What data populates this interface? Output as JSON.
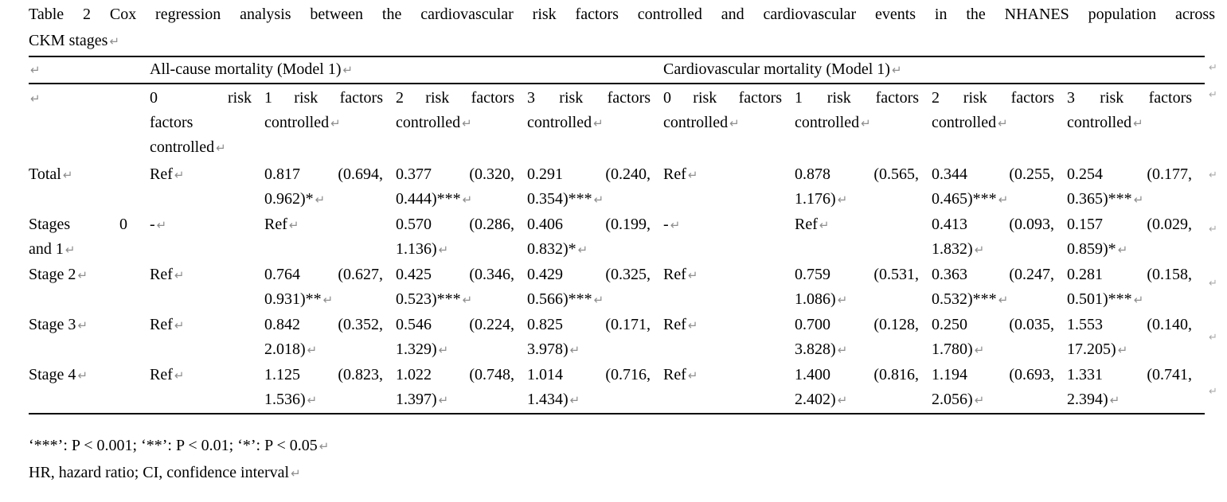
{
  "document": {
    "title_lines": [
      "Table 2 Cox regression analysis between the cardiovascular risk factors controlled and cardiovascular events in the NHANES population across",
      "CKM stages"
    ],
    "footnotes": [
      "‘***’: P < 0.001; ‘**’: P < 0.01; ‘*’: P < 0.05",
      "HR, hazard ratio; CI, confidence interval"
    ]
  },
  "marks": {
    "paragraph": "↵",
    "row_end": "↵"
  },
  "colors": {
    "text": "#000000",
    "background": "#ffffff",
    "border": "#000000",
    "mark": "#8e8e8e"
  },
  "table": {
    "group_headers": [
      {
        "label": "All-cause mortality (Model 1)",
        "span": 4
      },
      {
        "label": "Cardiovascular mortality (Model 1)",
        "span": 4
      }
    ],
    "column_headers": [
      {
        "lines": [
          "0 risk",
          "factors",
          "controlled"
        ]
      },
      {
        "lines": [
          "1 risk factors",
          "controlled"
        ]
      },
      {
        "lines": [
          "2 risk factors",
          "controlled"
        ]
      },
      {
        "lines": [
          "3 risk factors",
          "controlled"
        ]
      },
      {
        "lines": [
          "0 risk factors",
          "controlled"
        ]
      },
      {
        "lines": [
          "1 risk factors",
          "controlled"
        ]
      },
      {
        "lines": [
          "2 risk factors",
          "controlled"
        ]
      },
      {
        "lines": [
          "3 risk factors",
          "controlled"
        ]
      }
    ],
    "rows": [
      {
        "label": {
          "lines": [
            "Total"
          ]
        },
        "cells": [
          {
            "lines": [
              "Ref"
            ]
          },
          {
            "lines": [
              "0.817 (0.694,",
              "0.962)*"
            ]
          },
          {
            "lines": [
              "0.377 (0.320,",
              "0.444)***"
            ]
          },
          {
            "lines": [
              "0.291 (0.240,",
              "0.354)***"
            ]
          },
          {
            "lines": [
              "Ref"
            ]
          },
          {
            "lines": [
              "0.878 (0.565,",
              "1.176)"
            ]
          },
          {
            "lines": [
              "0.344 (0.255,",
              "0.465)***"
            ]
          },
          {
            "lines": [
              "0.254 (0.177,",
              "0.365)***"
            ]
          }
        ]
      },
      {
        "label": {
          "lines": [
            "Stages 0",
            "and 1"
          ]
        },
        "cells": [
          {
            "lines": [
              "-"
            ]
          },
          {
            "lines": [
              "Ref"
            ]
          },
          {
            "lines": [
              "0.570 (0.286,",
              "1.136)"
            ]
          },
          {
            "lines": [
              "0.406 (0.199,",
              "0.832)*"
            ]
          },
          {
            "lines": [
              "-"
            ]
          },
          {
            "lines": [
              "Ref"
            ]
          },
          {
            "lines": [
              "0.413 (0.093,",
              "1.832)"
            ]
          },
          {
            "lines": [
              "0.157 (0.029,",
              "0.859)*"
            ]
          }
        ]
      },
      {
        "label": {
          "lines": [
            "Stage 2"
          ]
        },
        "cells": [
          {
            "lines": [
              "Ref"
            ]
          },
          {
            "lines": [
              "0.764 (0.627,",
              "0.931)**"
            ]
          },
          {
            "lines": [
              "0.425 (0.346,",
              "0.523)***"
            ]
          },
          {
            "lines": [
              "0.429 (0.325,",
              "0.566)***"
            ]
          },
          {
            "lines": [
              "Ref"
            ]
          },
          {
            "lines": [
              "0.759 (0.531,",
              "1.086)"
            ]
          },
          {
            "lines": [
              "0.363 (0.247,",
              "0.532)***"
            ]
          },
          {
            "lines": [
              "0.281 (0.158,",
              "0.501)***"
            ]
          }
        ]
      },
      {
        "label": {
          "lines": [
            "Stage 3"
          ]
        },
        "cells": [
          {
            "lines": [
              "Ref"
            ]
          },
          {
            "lines": [
              "0.842 (0.352,",
              "2.018)"
            ]
          },
          {
            "lines": [
              "0.546 (0.224,",
              "1.329)"
            ]
          },
          {
            "lines": [
              "0.825 (0.171,",
              "3.978)"
            ]
          },
          {
            "lines": [
              "Ref"
            ]
          },
          {
            "lines": [
              "0.700 (0.128,",
              "3.828)"
            ]
          },
          {
            "lines": [
              "0.250 (0.035,",
              "1.780)"
            ]
          },
          {
            "lines": [
              "1.553 (0.140,",
              "17.205)"
            ]
          }
        ]
      },
      {
        "label": {
          "lines": [
            "Stage 4"
          ]
        },
        "cells": [
          {
            "lines": [
              "Ref"
            ]
          },
          {
            "lines": [
              "1.125 (0.823,",
              "1.536)"
            ]
          },
          {
            "lines": [
              "1.022 (0.748,",
              "1.397)"
            ]
          },
          {
            "lines": [
              "1.014 (0.716,",
              "1.434)"
            ]
          },
          {
            "lines": [
              "Ref"
            ]
          },
          {
            "lines": [
              "1.400 (0.816,",
              "2.402)"
            ]
          },
          {
            "lines": [
              "1.194 (0.693,",
              "2.056)"
            ]
          },
          {
            "lines": [
              "1.331 (0.741,",
              "2.394)"
            ]
          }
        ]
      }
    ]
  }
}
